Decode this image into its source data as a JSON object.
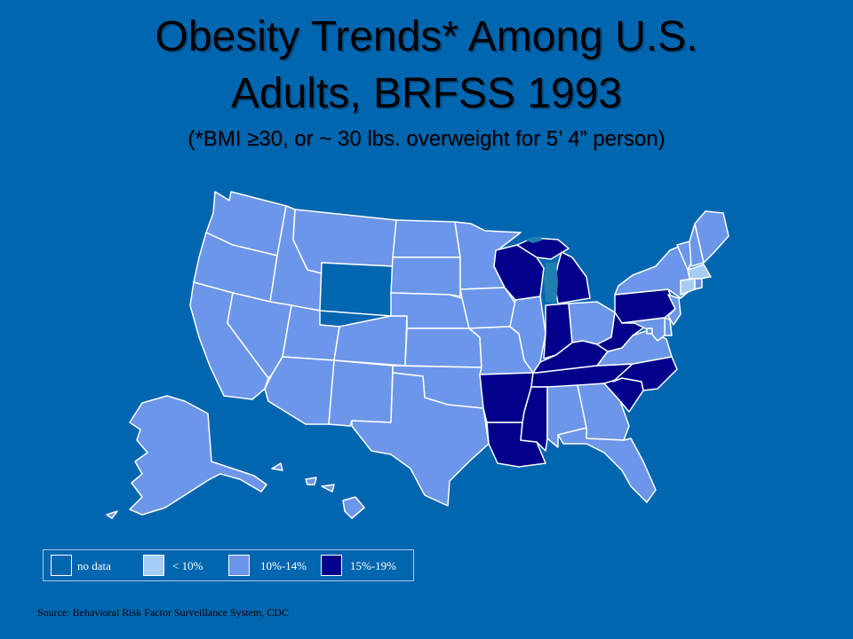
{
  "title": {
    "line1": "Obesity Trends* Among U.S.",
    "line2": "Adults, BRFSS 1993",
    "subtitle": "(*BMI ≥30, or ~ 30 lbs. overweight for 5’ 4” person)"
  },
  "colors": {
    "background": "#0066b0",
    "no_data": "#0066b0",
    "under_10": "#a6cdf5",
    "from_10_to_14": "#6b96ea",
    "from_15_to_19": "#00008b",
    "border": "#ffffff",
    "lakes": "#1f7fb0"
  },
  "legend": [
    {
      "label": "no data",
      "category": "no_data"
    },
    {
      "label": "< 10%",
      "category": "under_10"
    },
    {
      "label": "10%-14%",
      "category": "from_10_to_14"
    },
    {
      "label": "15%-19%",
      "category": "from_15_to_19"
    }
  ],
  "states": {
    "WA": "from_10_to_14",
    "OR": "from_10_to_14",
    "CA": "from_10_to_14",
    "ID": "from_10_to_14",
    "NV": "from_10_to_14",
    "MT": "from_10_to_14",
    "WY": "no_data",
    "UT": "from_10_to_14",
    "AZ": "from_10_to_14",
    "CO": "from_10_to_14",
    "NM": "from_10_to_14",
    "ND": "from_10_to_14",
    "SD": "from_10_to_14",
    "NE": "from_10_to_14",
    "KS": "from_10_to_14",
    "OK": "from_10_to_14",
    "TX": "from_10_to_14",
    "MN": "from_10_to_14",
    "IA": "from_10_to_14",
    "MO": "from_10_to_14",
    "AR": "from_15_to_19",
    "LA": "from_15_to_19",
    "WI": "from_15_to_19",
    "IL": "from_10_to_14",
    "MI": "from_15_to_19",
    "IN": "from_15_to_19",
    "OH": "from_10_to_14",
    "KY": "from_15_to_19",
    "TN": "from_15_to_19",
    "MS": "from_15_to_19",
    "AL": "from_10_to_14",
    "GA": "from_10_to_14",
    "FL": "from_10_to_14",
    "SC": "from_15_to_19",
    "NC": "from_15_to_19",
    "VA": "from_10_to_14",
    "WV": "from_15_to_19",
    "PA": "from_15_to_19",
    "NY": "from_10_to_14",
    "ME": "from_10_to_14",
    "NH": "from_10_to_14",
    "VT": "from_10_to_14",
    "MA": "under_10",
    "CT": "under_10",
    "RI": "from_10_to_14",
    "NJ": "from_10_to_14",
    "DE": "from_10_to_14",
    "MD": "from_10_to_14",
    "DC": "from_10_to_14",
    "AK": "from_10_to_14",
    "HI": "from_10_to_14"
  },
  "source": "Source: Behavioral Risk Factor Surveillance System, CDC"
}
